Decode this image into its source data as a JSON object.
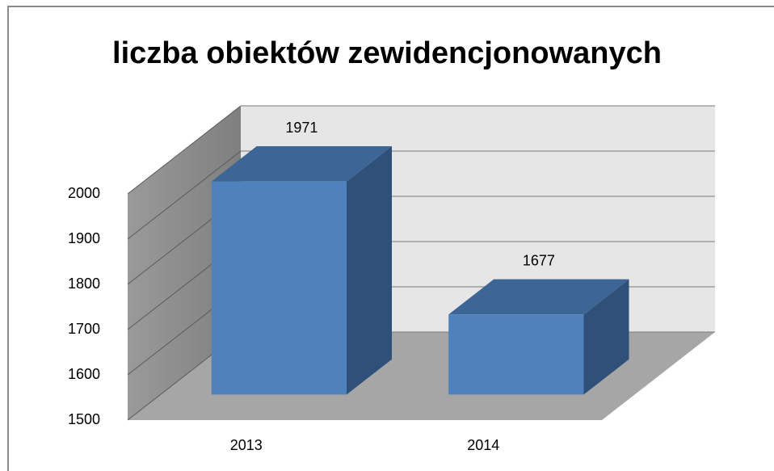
{
  "chart_data": {
    "type": "bar",
    "title": "liczba obiektów zewidencjonowanych",
    "categories": [
      "2013",
      "2014"
    ],
    "values": [
      1971,
      1677
    ],
    "color": "#4f81bd",
    "ylim": [
      1500,
      2000
    ],
    "yticks": [
      1500,
      1600,
      1700,
      1800,
      1900,
      2000
    ],
    "grid": true
  }
}
